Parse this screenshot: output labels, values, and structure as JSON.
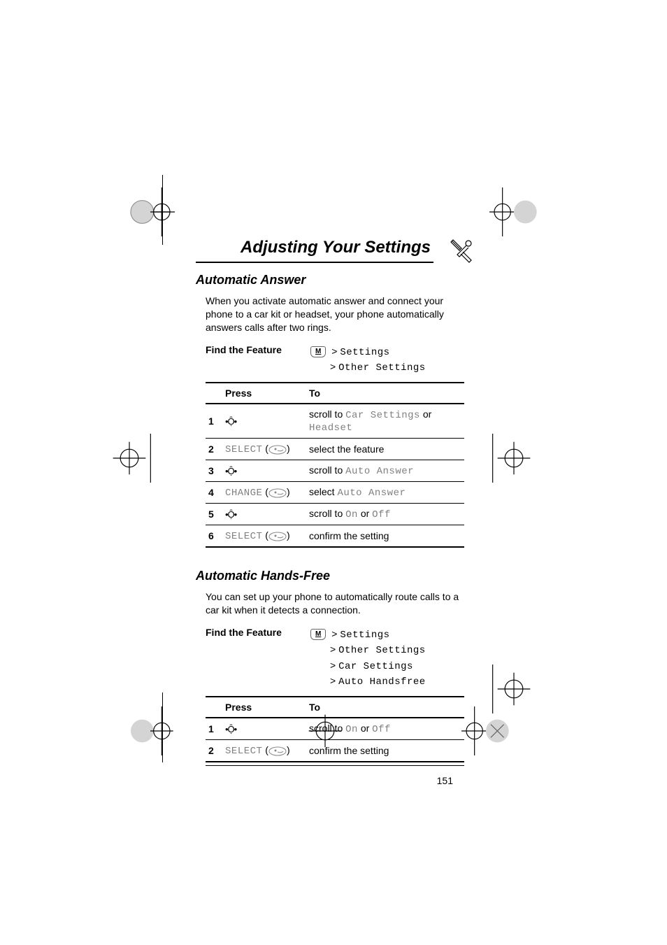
{
  "page": {
    "chapter_title": "Adjusting Your Settings",
    "page_number": "151"
  },
  "section1": {
    "title": "Automatic Answer",
    "body": "When you activate automatic answer and connect your phone to a car kit or headset, your phone automatically answers calls after two rings.",
    "find_label": "Find the Feature",
    "menu_key": "M",
    "path_line1_prefix": "> ",
    "path_line1": "Settings",
    "path_line2_prefix": "> ",
    "path_line2": "Other Settings",
    "table": {
      "header_press": "Press",
      "header_to": "To",
      "rows": [
        {
          "n": "1",
          "press_type": "nav",
          "press": "",
          "to_pre": "scroll to ",
          "to_mono1": "Car Settings",
          "to_mid": " or ",
          "to_mono2": "Headset",
          "to_post": ""
        },
        {
          "n": "2",
          "press_type": "soft",
          "press_label": "SELECT",
          "to_pre": "select the feature",
          "to_mono1": "",
          "to_mid": "",
          "to_mono2": "",
          "to_post": ""
        },
        {
          "n": "3",
          "press_type": "nav",
          "press": "",
          "to_pre": "scroll to ",
          "to_mono1": "Auto Answer",
          "to_mid": "",
          "to_mono2": "",
          "to_post": ""
        },
        {
          "n": "4",
          "press_type": "soft",
          "press_label": "CHANGE",
          "to_pre": "select ",
          "to_mono1": "Auto Answer",
          "to_mid": "",
          "to_mono2": "",
          "to_post": ""
        },
        {
          "n": "5",
          "press_type": "nav",
          "press": "",
          "to_pre": "scroll to ",
          "to_mono1": "On",
          "to_mid": " or ",
          "to_mono2": "Off",
          "to_post": ""
        },
        {
          "n": "6",
          "press_type": "soft",
          "press_label": "SELECT",
          "to_pre": "confirm the setting",
          "to_mono1": "",
          "to_mid": "",
          "to_mono2": "",
          "to_post": ""
        }
      ]
    }
  },
  "section2": {
    "title": "Automatic Hands-Free",
    "body": "You can set up your phone to automatically route calls to a car kit when it detects a connection.",
    "find_label": "Find the Feature",
    "menu_key": "M",
    "path_lines": [
      {
        "prefix": "> ",
        "text": "Settings"
      },
      {
        "prefix": "> ",
        "text": "Other Settings"
      },
      {
        "prefix": "> ",
        "text": "Car Settings"
      },
      {
        "prefix": "> ",
        "text": "Auto Handsfree"
      }
    ],
    "table": {
      "header_press": "Press",
      "header_to": "To",
      "rows": [
        {
          "n": "1",
          "press_type": "nav",
          "press": "",
          "to_pre": "scroll to ",
          "to_mono1": "On",
          "to_mid": " or ",
          "to_mono2": "Off",
          "to_post": ""
        },
        {
          "n": "2",
          "press_type": "soft",
          "press_label": "SELECT",
          "to_pre": "confirm the setting",
          "to_mono1": "",
          "to_mid": "",
          "to_mono2": "",
          "to_post": ""
        }
      ]
    }
  },
  "colors": {
    "text": "#000000",
    "gray": "#808080",
    "bg": "#ffffff"
  }
}
